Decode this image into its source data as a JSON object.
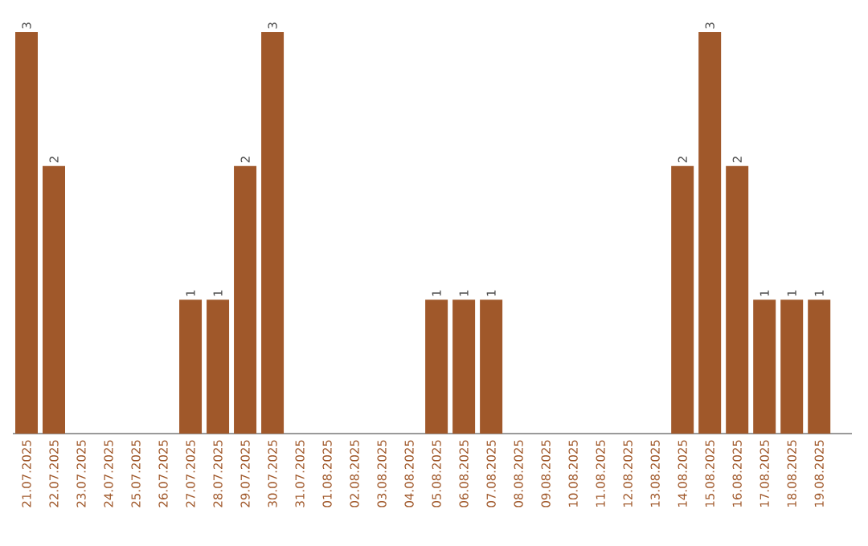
{
  "chart_data": {
    "type": "bar",
    "categories": [
      "21.07.2025",
      "22.07.2025",
      "23.07.2025",
      "24.07.2025",
      "25.07.2025",
      "26.07.2025",
      "27.07.2025",
      "28.07.2025",
      "29.07.2025",
      "30.07.2025",
      "31.07.2025",
      "01.08.2025",
      "02.08.2025",
      "03.08.2025",
      "04.08.2025",
      "05.08.2025",
      "06.08.2025",
      "07.08.2025",
      "08.08.2025",
      "09.08.2025",
      "10.08.2025",
      "11.08.2025",
      "12.08.2025",
      "13.08.2025",
      "14.08.2025",
      "15.08.2025",
      "16.08.2025",
      "17.08.2025",
      "18.08.2025",
      "19.08.2025"
    ],
    "values": [
      3,
      2,
      0,
      0,
      0,
      0,
      1,
      1,
      2,
      3,
      0,
      0,
      0,
      0,
      0,
      1,
      1,
      1,
      0,
      0,
      0,
      0,
      0,
      0,
      2,
      3,
      2,
      1,
      1,
      1
    ],
    "value_labels": [
      "3",
      "2",
      null,
      null,
      null,
      null,
      "1",
      "1",
      "2",
      "3",
      null,
      null,
      null,
      null,
      null,
      "1",
      "1",
      "1",
      null,
      null,
      null,
      null,
      null,
      null,
      "2",
      "3",
      "2",
      "1",
      "1",
      "1"
    ],
    "color": "#a0582a"
  }
}
